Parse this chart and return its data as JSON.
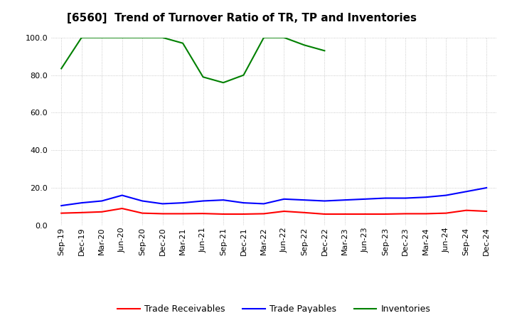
{
  "title": "[6560]  Trend of Turnover Ratio of TR, TP and Inventories",
  "x_labels": [
    "Sep-19",
    "Dec-19",
    "Mar-20",
    "Jun-20",
    "Sep-20",
    "Dec-20",
    "Mar-21",
    "Jun-21",
    "Sep-21",
    "Dec-21",
    "Mar-22",
    "Jun-22",
    "Sep-22",
    "Dec-22",
    "Mar-23",
    "Jun-23",
    "Sep-23",
    "Dec-23",
    "Mar-24",
    "Jun-24",
    "Sep-24",
    "Dec-24"
  ],
  "trade_receivables": [
    6.5,
    6.8,
    7.2,
    9.0,
    6.5,
    6.2,
    6.2,
    6.3,
    6.0,
    6.0,
    6.2,
    7.5,
    6.8,
    6.0,
    6.0,
    6.0,
    6.0,
    6.2,
    6.2,
    6.5,
    8.0,
    7.5
  ],
  "trade_payables": [
    10.5,
    12.0,
    13.0,
    16.0,
    13.0,
    11.5,
    12.0,
    13.0,
    13.5,
    12.0,
    11.5,
    14.0,
    13.5,
    13.0,
    13.5,
    14.0,
    14.5,
    14.5,
    15.0,
    16.0,
    18.0,
    20.0
  ],
  "inventories": [
    83.5,
    100.0,
    100.0,
    100.0,
    100.0,
    100.0,
    97.0,
    79.0,
    76.0,
    80.0,
    100.0,
    100.0,
    96.0,
    93.0,
    null,
    null,
    null,
    null,
    null,
    null,
    null,
    null
  ],
  "ylim": [
    0.0,
    100.0
  ],
  "yticks": [
    0.0,
    20.0,
    40.0,
    60.0,
    80.0,
    100.0
  ],
  "color_tr": "#ff0000",
  "color_tp": "#0000ff",
  "color_inv": "#008000",
  "legend_labels": [
    "Trade Receivables",
    "Trade Payables",
    "Inventories"
  ],
  "bg_color": "#ffffff",
  "grid_color": "#aaaaaa",
  "title_fontsize": 11,
  "tick_fontsize": 8,
  "legend_fontsize": 9
}
